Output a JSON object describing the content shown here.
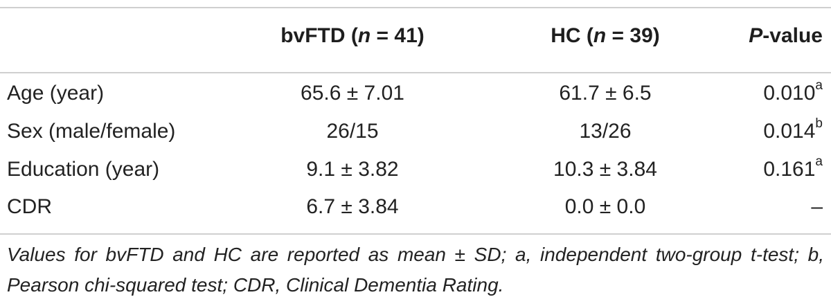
{
  "header": {
    "col1": {
      "pre": "bvFTD (",
      "n": "n",
      "post": " = 41)"
    },
    "col2": {
      "pre": "HC (",
      "n": "n",
      "post": " = 39)"
    },
    "col3": {
      "p": "P",
      "post": "-value"
    }
  },
  "rows": [
    {
      "label": "Age (year)",
      "bvftd": "65.6 ± 7.01",
      "hc": "61.7 ± 6.5",
      "p": "0.010",
      "sup": "a"
    },
    {
      "label": "Sex (male/female)",
      "bvftd": "26/15",
      "hc": "13/26",
      "p": "0.014",
      "sup": "b"
    },
    {
      "label": "Education (year)",
      "bvftd": "9.1 ± 3.82",
      "hc": "10.3 ± 3.84",
      "p": "0.161",
      "sup": "a"
    },
    {
      "label": "CDR",
      "bvftd": "6.7 ± 3.84",
      "hc": "0.0 ± 0.0",
      "p": "–",
      "sup": ""
    }
  ],
  "footnote": "Values for bvFTD and HC are reported as mean ± SD; a, independent two-group t-test; b, Pearson chi-squared test; CDR, Clinical Dementia Rating."
}
